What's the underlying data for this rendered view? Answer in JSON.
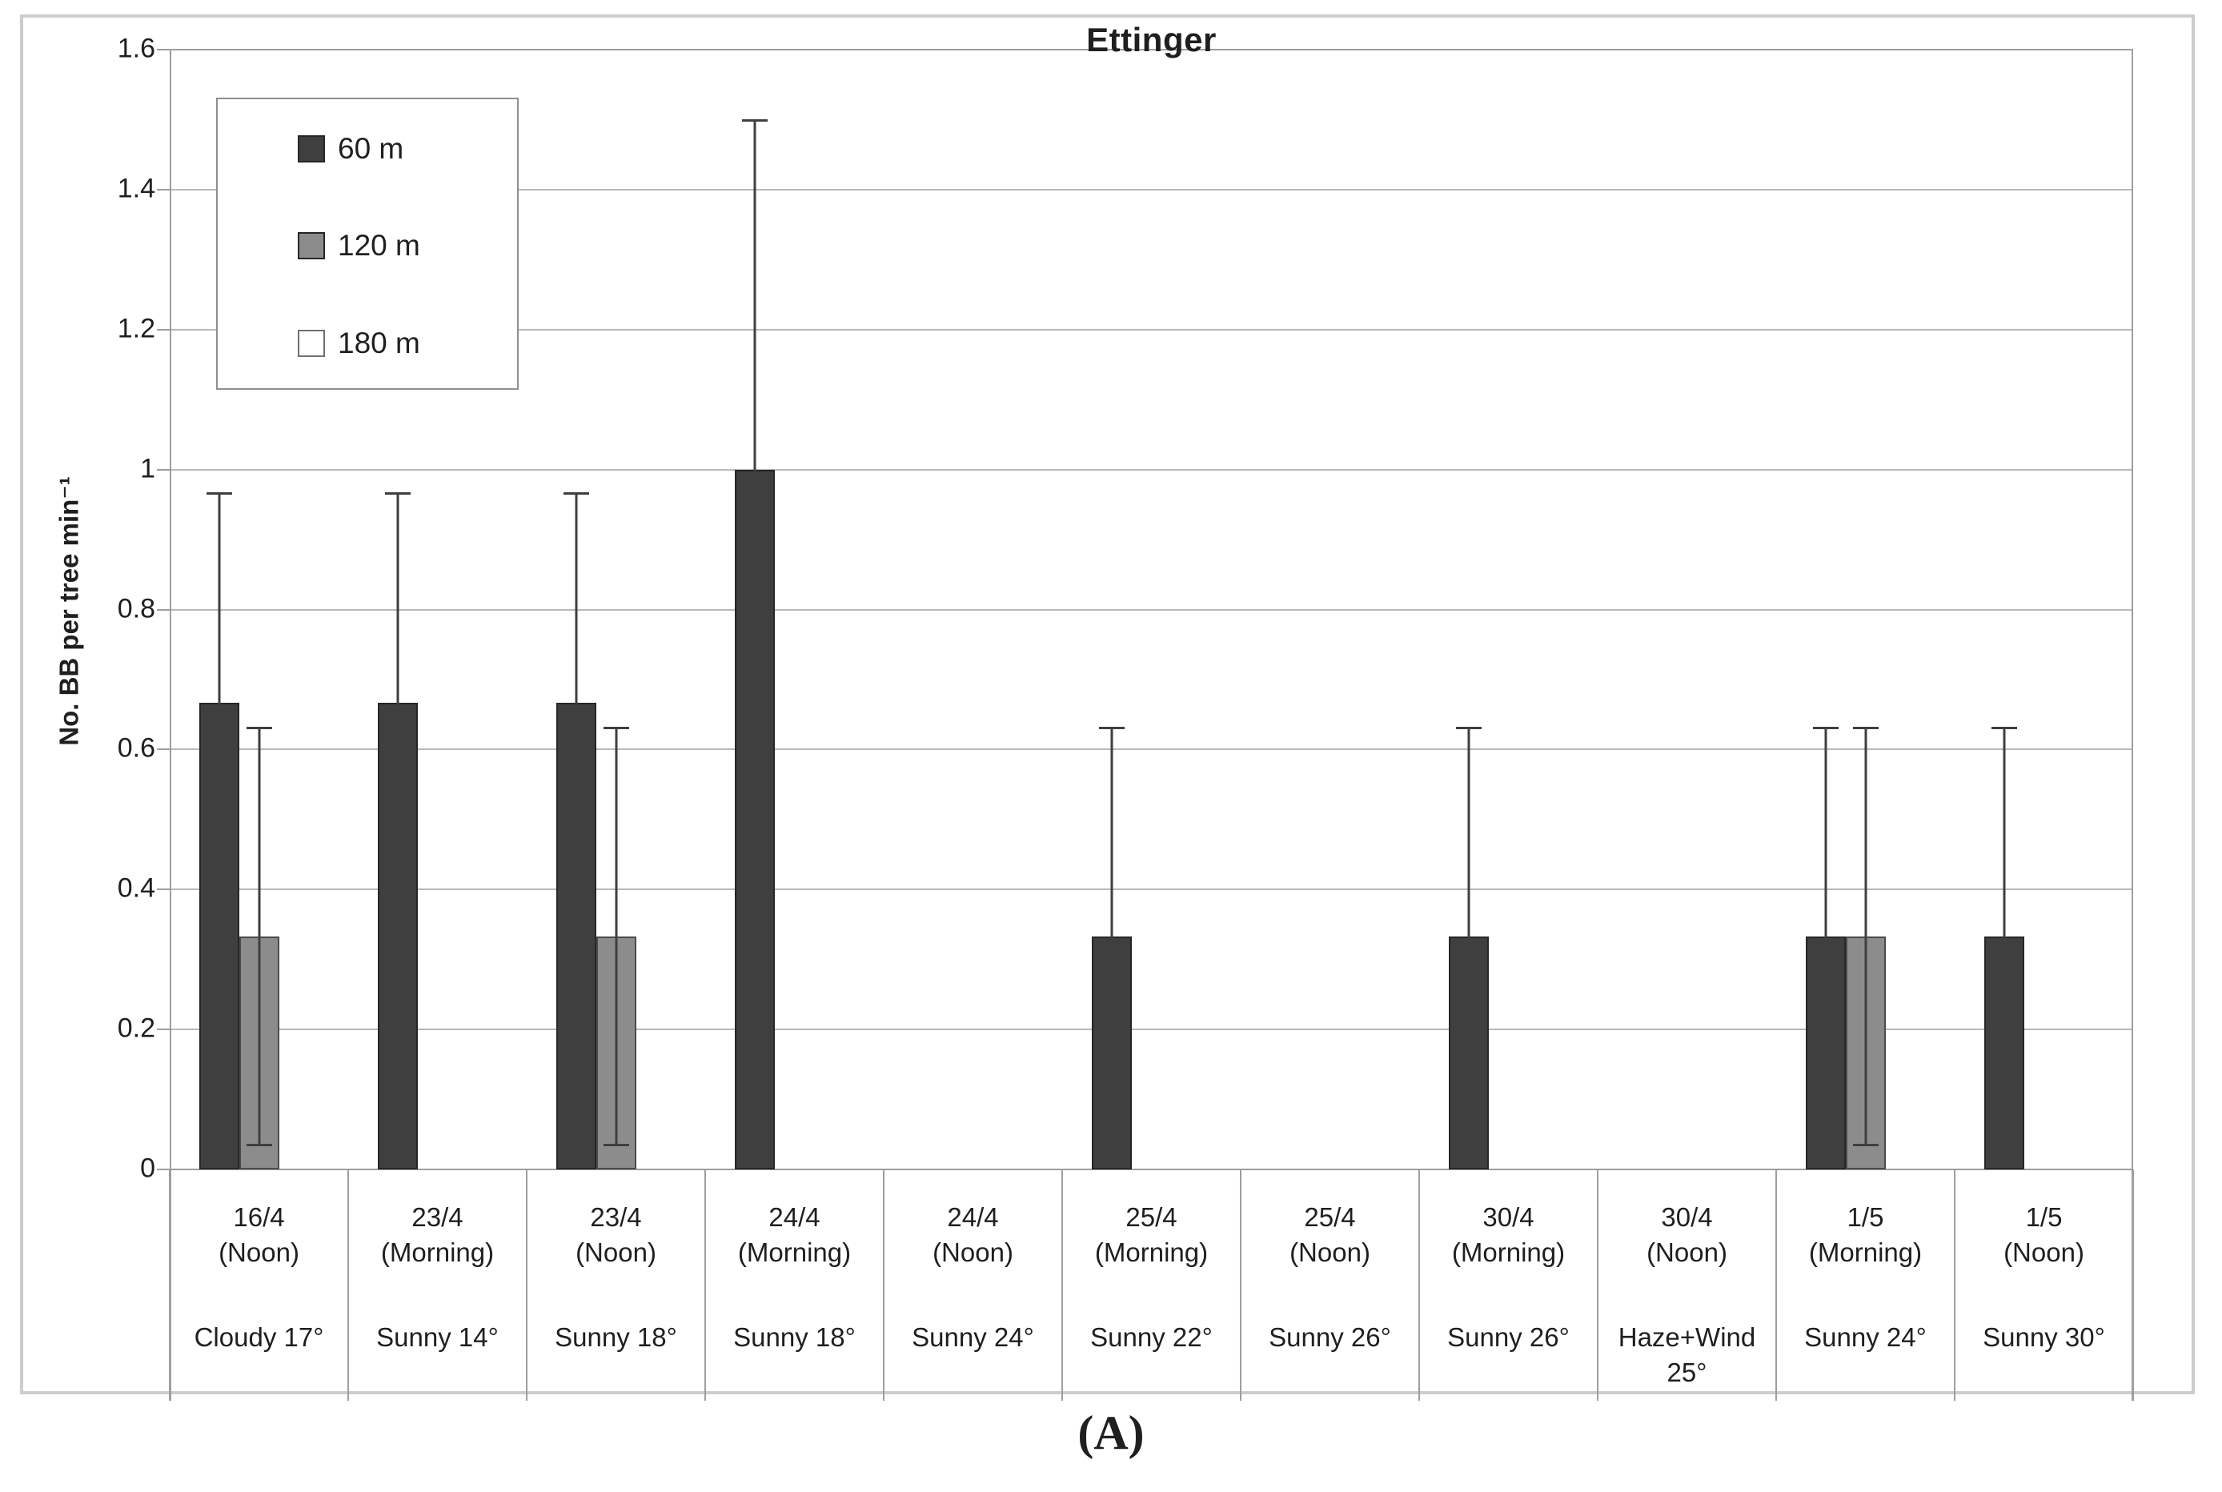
{
  "caption": "(A)",
  "colors": {
    "series_60m_fill": "#3f3f3f",
    "series_60m_border": "#262626",
    "series_120m_fill": "#8c8c8c",
    "series_120m_border": "#4a4a4a",
    "series_180m_fill": "#ffffff",
    "series_180m_border": "#707070",
    "gridline": "#b9b9b9",
    "axis": "#9e9e9e",
    "error_bar": "#3f3f3f",
    "frame": "#cdcdcd",
    "text": "#1f1f1f"
  },
  "chart_data": {
    "type": "bar",
    "title": "Ettinger",
    "xlabel": "",
    "ylabel": "No. BB per tree min⁻¹",
    "ylim": [
      0,
      1.6
    ],
    "ytick_step": 0.2,
    "ytick_labels": [
      "1.6",
      "1.4",
      "1.2",
      "1",
      "0.8",
      "0.6",
      "0.4",
      "0.2",
      "0"
    ],
    "grid": true,
    "legend_position": "top-left-inside",
    "error_bars": true,
    "empty_trailing_cell": true,
    "categories": [
      {
        "date": "16/4",
        "time": "(Noon)",
        "condition": "Cloudy 17°"
      },
      {
        "date": "23/4",
        "time": "(Morning)",
        "condition": "Sunny 14°"
      },
      {
        "date": "23/4",
        "time": "(Noon)",
        "condition": "Sunny 18°"
      },
      {
        "date": "24/4",
        "time": "(Morning)",
        "condition": "Sunny 18°"
      },
      {
        "date": "24/4",
        "time": "(Noon)",
        "condition": "Sunny 24°"
      },
      {
        "date": "25/4",
        "time": "(Morning)",
        "condition": "Sunny 22°"
      },
      {
        "date": "25/4",
        "time": "(Noon)",
        "condition": "Sunny 26°"
      },
      {
        "date": "30/4",
        "time": "(Morning)",
        "condition": "Sunny 26°"
      },
      {
        "date": "30/4",
        "time": "(Noon)",
        "condition": "Haze+Wind 25°"
      },
      {
        "date": "1/5",
        "time": "(Morning)",
        "condition": "Sunny 24°"
      },
      {
        "date": "1/5",
        "time": "(Noon)",
        "condition": "Sunny 30°"
      }
    ],
    "series": [
      {
        "name": "60 m",
        "values": [
          0.667,
          0.667,
          0.667,
          1.0,
          null,
          0.333,
          null,
          0.333,
          null,
          0.333,
          0.333
        ],
        "errors": [
          0.3,
          0.3,
          0.3,
          0.5,
          null,
          0.3,
          null,
          0.3,
          null,
          0.3,
          0.3
        ]
      },
      {
        "name": "120 m",
        "values": [
          0.333,
          null,
          0.333,
          null,
          null,
          null,
          null,
          null,
          null,
          0.333,
          null
        ],
        "errors": [
          0.3,
          null,
          0.3,
          null,
          null,
          null,
          null,
          null,
          null,
          0.3,
          null
        ]
      },
      {
        "name": "180 m",
        "values": [
          null,
          null,
          null,
          null,
          null,
          null,
          null,
          null,
          null,
          null,
          null
        ],
        "errors": [
          null,
          null,
          null,
          null,
          null,
          null,
          null,
          null,
          null,
          null,
          null
        ]
      }
    ]
  },
  "legend": [
    {
      "label": "60 m",
      "fill": "#3f3f3f",
      "border": "#262626"
    },
    {
      "label": "120 m",
      "fill": "#8c8c8c",
      "border": "#262626"
    },
    {
      "label": "180 m",
      "fill": "#ffffff",
      "border": "#707070"
    }
  ]
}
